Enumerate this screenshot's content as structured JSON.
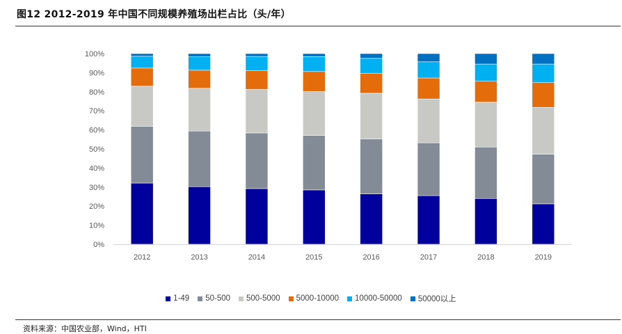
{
  "title": "图12 2012-2019 年中国不同规模养殖场出栏占比（头/年）",
  "source": "资料来源：中国农业部，Wind，HTI",
  "chart_data": {
    "type": "bar",
    "stacked": true,
    "percent": true,
    "categories": [
      "2012",
      "2013",
      "2014",
      "2015",
      "2016",
      "2017",
      "2018",
      "2019"
    ],
    "ylim": [
      0,
      100
    ],
    "yticks": [
      "0%",
      "10%",
      "20%",
      "30%",
      "40%",
      "50%",
      "60%",
      "70%",
      "80%",
      "90%",
      "100%"
    ],
    "grid": false,
    "legend_position": "bottom",
    "series": [
      {
        "name": "1-49",
        "color": "#00009c",
        "values": [
          32.1,
          30.2,
          29.2,
          28.5,
          26.4,
          25.5,
          24.0,
          21.2
        ]
      },
      {
        "name": "50-500",
        "color": "#838b96",
        "values": [
          29.8,
          29.2,
          29.2,
          28.6,
          28.8,
          27.7,
          27.0,
          26.0
        ]
      },
      {
        "name": "500-5000",
        "color": "#c8c8c4",
        "values": [
          21.0,
          22.4,
          22.8,
          23.0,
          24.0,
          23.0,
          23.5,
          24.6
        ]
      },
      {
        "name": "5000-10000",
        "color": "#e46c0a",
        "values": [
          9.5,
          9.5,
          9.8,
          10.5,
          10.5,
          11.0,
          11.0,
          13.0
        ]
      },
      {
        "name": "10000-50000",
        "color": "#00b0f0",
        "values": [
          6.2,
          7.0,
          7.5,
          7.8,
          7.8,
          8.5,
          9.0,
          9.7
        ]
      },
      {
        "name": "50000以上",
        "color": "#0070c0",
        "values": [
          1.4,
          1.7,
          1.5,
          1.6,
          2.5,
          4.3,
          5.5,
          5.5
        ]
      }
    ]
  }
}
